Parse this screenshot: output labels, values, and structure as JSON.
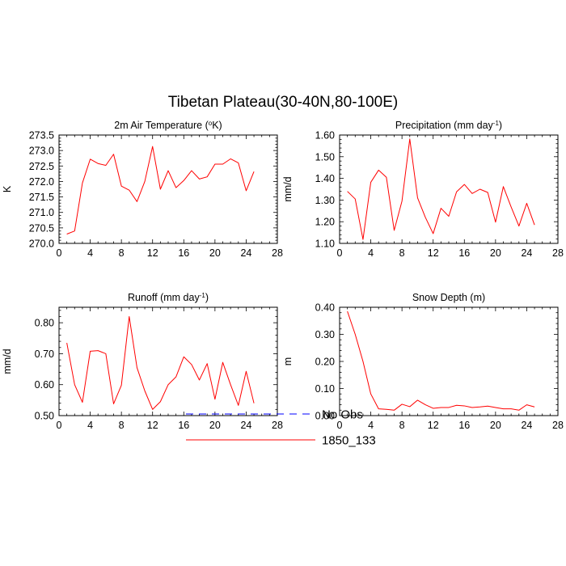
{
  "figure": {
    "title": "Tibetan Plateau(30-40N,80-100E)"
  },
  "legend": {
    "placement": "bottom-center",
    "entries": [
      {
        "label": "No Obs",
        "color": "#0000ff",
        "dash": "dashed"
      },
      {
        "label": "1850_133",
        "color": "#ff0000",
        "dash": "solid"
      }
    ]
  },
  "chart_data": [
    {
      "type": "line",
      "title_main": "2m Air Temperature (",
      "title_sup": "o",
      "title_end": "K)",
      "ylabel": "K",
      "xlim": [
        0,
        28
      ],
      "xticks": [
        0,
        4,
        8,
        12,
        16,
        20,
        24,
        28
      ],
      "ylim": [
        270.0,
        273.5
      ],
      "yticks": [
        270.0,
        270.5,
        271.0,
        271.5,
        272.0,
        272.5,
        273.0,
        273.5
      ],
      "ytick_labels": [
        "270.0",
        "270.5",
        "271.0",
        "271.5",
        "272.0",
        "272.5",
        "273.0",
        "273.5"
      ],
      "series": [
        {
          "color": "#ff0000",
          "x": [
            1,
            2,
            3,
            4,
            5,
            6,
            7,
            8,
            9,
            10,
            11,
            12,
            13,
            14,
            15,
            16,
            17,
            18,
            19,
            20,
            21,
            22,
            23,
            24,
            25
          ],
          "y": [
            270.3,
            270.4,
            271.95,
            272.72,
            272.58,
            272.52,
            272.88,
            271.85,
            271.72,
            271.35,
            272.0,
            273.13,
            271.75,
            272.35,
            271.8,
            272.03,
            272.35,
            272.08,
            272.15,
            272.56,
            272.56,
            272.73,
            272.6,
            271.7,
            272.32
          ]
        }
      ]
    },
    {
      "type": "line",
      "title_main": "Precipitation (mm day",
      "title_sup": "-1",
      "title_end": ")",
      "ylabel": "mm/d",
      "xlim": [
        0,
        28
      ],
      "xticks": [
        0,
        4,
        8,
        12,
        16,
        20,
        24,
        28
      ],
      "ylim": [
        1.1,
        1.6
      ],
      "yticks": [
        1.1,
        1.2,
        1.3,
        1.4,
        1.5,
        1.6
      ],
      "ytick_labels": [
        "1.10",
        "1.20",
        "1.30",
        "1.40",
        "1.50",
        "1.60"
      ],
      "series": [
        {
          "color": "#ff0000",
          "x": [
            1,
            2,
            3,
            4,
            5,
            6,
            7,
            8,
            9,
            10,
            11,
            12,
            13,
            14,
            15,
            16,
            17,
            18,
            19,
            20,
            21,
            22,
            23,
            24,
            25
          ],
          "y": [
            1.34,
            1.305,
            1.118,
            1.382,
            1.438,
            1.405,
            1.16,
            1.295,
            1.582,
            1.31,
            1.22,
            1.145,
            1.262,
            1.225,
            1.338,
            1.372,
            1.33,
            1.35,
            1.335,
            1.198,
            1.362,
            1.268,
            1.18,
            1.285,
            1.185
          ]
        }
      ]
    },
    {
      "type": "line",
      "title_main": "Runoff (mm day",
      "title_sup": "-1",
      "title_end": ")",
      "ylabel": "mm/d",
      "xlim": [
        0,
        28
      ],
      "xticks": [
        0,
        4,
        8,
        12,
        16,
        20,
        24,
        28
      ],
      "ylim": [
        0.5,
        0.85
      ],
      "yticks": [
        0.5,
        0.6,
        0.7,
        0.8
      ],
      "ytick_labels": [
        "0.50",
        "0.60",
        "0.70",
        "0.80"
      ],
      "series": [
        {
          "color": "#ff0000",
          "x": [
            1,
            2,
            3,
            4,
            5,
            6,
            7,
            8,
            9,
            10,
            11,
            12,
            13,
            14,
            15,
            16,
            17,
            18,
            19,
            20,
            21,
            22,
            23,
            24,
            25
          ],
          "y": [
            0.735,
            0.6,
            0.543,
            0.708,
            0.71,
            0.7,
            0.538,
            0.598,
            0.82,
            0.655,
            0.58,
            0.52,
            0.545,
            0.6,
            0.625,
            0.69,
            0.665,
            0.615,
            0.668,
            0.553,
            0.672,
            0.6,
            0.533,
            0.643,
            0.54
          ]
        }
      ]
    },
    {
      "type": "line",
      "title_main": "Snow Depth (m)",
      "title_sup": "",
      "title_end": "",
      "ylabel": "m",
      "xlim": [
        0,
        28
      ],
      "xticks": [
        0,
        4,
        8,
        12,
        16,
        20,
        24,
        28
      ],
      "ylim": [
        0.0,
        0.4
      ],
      "yticks": [
        0.0,
        0.1,
        0.2,
        0.3,
        0.4
      ],
      "ytick_labels": [
        "0.00",
        "0.10",
        "0.20",
        "0.30",
        "0.40"
      ],
      "series": [
        {
          "color": "#ff0000",
          "x": [
            1,
            2,
            3,
            4,
            5,
            6,
            7,
            8,
            9,
            10,
            11,
            12,
            13,
            14,
            15,
            16,
            17,
            18,
            19,
            20,
            21,
            22,
            23,
            24,
            25
          ],
          "y": [
            0.385,
            0.3,
            0.2,
            0.08,
            0.025,
            0.023,
            0.02,
            0.042,
            0.033,
            0.057,
            0.04,
            0.027,
            0.03,
            0.03,
            0.038,
            0.036,
            0.03,
            0.032,
            0.035,
            0.03,
            0.025,
            0.025,
            0.02,
            0.04,
            0.032
          ]
        }
      ]
    }
  ]
}
